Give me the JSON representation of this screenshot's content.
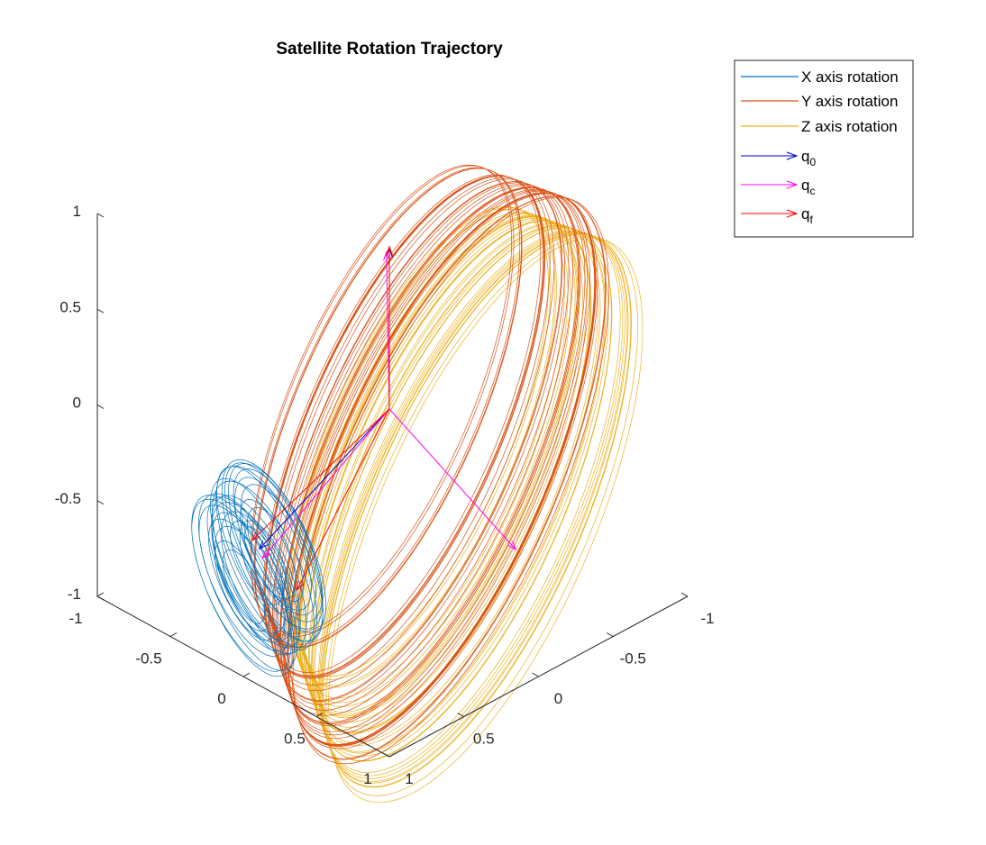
{
  "chart_data": {
    "type": "line",
    "subtype": "3d-trajectory",
    "title": "Satellite Rotation Trajectory",
    "xlabel": "",
    "ylabel": "",
    "zlabel": "",
    "xlim": [
      -1,
      1
    ],
    "ylim": [
      -1,
      1
    ],
    "zlim": [
      -1,
      1
    ],
    "x_ticks": [
      "-1",
      "-0.5",
      "0",
      "0.5",
      "1"
    ],
    "y_ticks": [
      "-1",
      "-0.5",
      "0",
      "0.5",
      "1"
    ],
    "z_ticks": [
      "-1",
      "-0.5",
      "0",
      "0.5",
      "1"
    ],
    "grid": false,
    "legend_position": "top-right",
    "series": [
      {
        "name": "X axis rotation",
        "color": "#0072BD",
        "kind": "line",
        "center": [
          0.9,
          0,
          0
        ],
        "radius": 0.35,
        "turns": 28
      },
      {
        "name": "Y axis rotation",
        "color": "#D95319",
        "kind": "line",
        "center": [
          0,
          0,
          0
        ],
        "radius": 1.0,
        "turns": 34
      },
      {
        "name": "Z axis rotation",
        "color": "#EDB120",
        "kind": "line",
        "center": [
          0,
          0,
          0
        ],
        "radius": 1.0,
        "turns": 34
      }
    ],
    "quivers": [
      {
        "name": "q",
        "sub": "0",
        "color": "#0000CC",
        "origin": [
          0,
          0,
          0
        ],
        "vectors": [
          [
            0.85,
            -0.05,
            0
          ],
          [
            0,
            0,
            0.84
          ]
        ]
      },
      {
        "name": "q",
        "sub": "c",
        "color": "#FF00FF",
        "origin": [
          0,
          0,
          0
        ],
        "vectors": [
          [
            0.9,
            0.02,
            0.06
          ],
          [
            0,
            0.85,
            0.03
          ],
          [
            0.02,
            0,
            0.84
          ]
        ]
      },
      {
        "name": "q",
        "sub": "f",
        "color": "#FF0000",
        "origin": [
          0,
          0,
          0
        ],
        "vectors": [
          [
            0.85,
            -0.1,
            0
          ],
          [
            0.9,
            0.25,
            0.1
          ],
          [
            0,
            0,
            0.85
          ]
        ]
      }
    ]
  }
}
